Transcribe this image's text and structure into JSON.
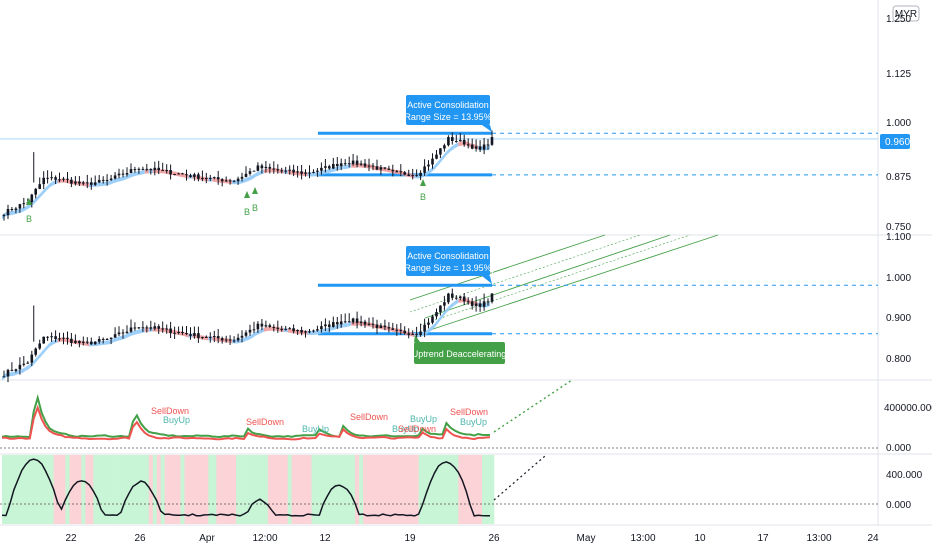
{
  "currency": "MYR",
  "colors": {
    "accent": "#2196f3",
    "up": "#43a047",
    "down": "#ef5350",
    "candle": "#131722",
    "upBand": "#90caf9",
    "downBand": "#ef9a9a",
    "buyBg": "#c8f5d6",
    "sellBg": "#fcd3d6"
  },
  "xaxis": {
    "labels": [
      "22",
      "26",
      "Apr",
      "12:00",
      "12",
      "19",
      "26",
      "May",
      "13:00",
      "10",
      "17",
      "13:00",
      "24"
    ]
  },
  "panel1": {
    "ticks": [
      "1.125",
      "1.000",
      "0.875",
      "0.750"
    ],
    "last_price": "0.960",
    "callout": {
      "line1": "Active Consolidation",
      "line2": "(Range Size = 13.95%)"
    },
    "range": {
      "top": 0.97,
      "bottom": 0.86
    },
    "buy_labels": [
      "B",
      "B",
      "B",
      "B"
    ]
  },
  "panel2": {
    "ticks": [
      "1.100",
      "1.000",
      "0.900",
      "0.800"
    ],
    "callout": {
      "line1": "Active Consolidation",
      "line2": "(Range Size = 13.95%)"
    },
    "trend_label": "Uptrend Deaccelerating",
    "range": {
      "top": 0.98,
      "bottom": 0.86
    }
  },
  "panel3": {
    "ticks": [
      "400000.000",
      "0.000"
    ],
    "labels": [
      "SellDown",
      "BuyUp",
      "SellDown",
      "BuyUp",
      "SellDown",
      "BuyUp",
      "SellDown",
      "BuyUp",
      "SellDown",
      "BuyUp"
    ]
  },
  "panel4": {
    "ticks": [
      "400.000",
      "0.000"
    ]
  },
  "chart_data": [
    {
      "type": "candlestick",
      "title": "",
      "ylim": [
        0.72,
        1.3
      ],
      "annotations": [
        "Active Consolidation",
        "(Range Size = 13.95%)",
        "B"
      ],
      "series": [
        {
          "name": "",
          "values": [
            0.76,
            0.78,
            0.86,
            0.84,
            0.83,
            0.85,
            0.86,
            0.88,
            0.87,
            0.86,
            0.85,
            0.86,
            0.88,
            0.89,
            0.87,
            0.86,
            0.85,
            0.84,
            0.86,
            0.85,
            0.87,
            0.88,
            0.87,
            0.87,
            0.86,
            0.89,
            0.9,
            0.91,
            0.9,
            0.89,
            0.88,
            0.87,
            0.93,
            0.92,
            0.95,
            0.94,
            0.91,
            0.92,
            0.93
          ]
        }
      ],
      "last": 0.96
    },
    {
      "type": "candlestick",
      "ylim": [
        0.75,
        1.1
      ],
      "annotations": [
        "Active Consolidation",
        "(Range Size = 13.95%)",
        "Uptrend Deaccelerating"
      ]
    },
    {
      "type": "line",
      "ylim": [
        0,
        600000
      ],
      "series": [
        {
          "name": "",
          "color": "#43a047"
        },
        {
          "name": "",
          "color": "#ef5350"
        }
      ],
      "annotations": [
        "SellDown",
        "BuyUp"
      ]
    },
    {
      "type": "line",
      "ylim": [
        -200,
        800
      ],
      "series": [
        {
          "name": "",
          "color": "#131722"
        }
      ]
    }
  ]
}
